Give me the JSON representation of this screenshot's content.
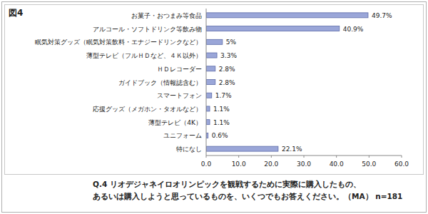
{
  "chart_data": {
    "type": "bar",
    "orientation": "horizontal",
    "title": "図4",
    "annotations": [
      "Q.4 リオデジャネイロオリンピックを観戦するために実際に購入したもの、",
      "あるいは購入しようと思っているものを、いくつでもお答えください。（MA） n=181"
    ],
    "categories": [
      "お菓子・おつまみ等食品",
      "アルコール・ソフトドリンク等飲み物",
      "眠気対策グッズ（眠気対策飲料・エナジードリンクなど）",
      "薄型テレビ（フルＨＤなど、４Ｋ以外）",
      "ＨＤレコーダー",
      "ガイドブック（情報誌含む）",
      "スマートフォン",
      "応援グッズ（メガホン・タオルなど）",
      "薄型テレビ（4K）",
      "ユニフォーム",
      "特になし"
    ],
    "values": [
      49.7,
      40.9,
      5,
      3.3,
      2.8,
      2.8,
      1.7,
      1.1,
      1.1,
      0.6,
      22.1
    ],
    "value_labels": [
      "49.7%",
      "40.9%",
      "5%",
      "3.3%",
      "2.8%",
      "2.8%",
      "1.7%",
      "1.1%",
      "1.1%",
      "0.6%",
      "22.1%"
    ],
    "color": "#9aa6d8",
    "xlim": [
      0,
      60
    ],
    "xticks": [
      {
        "value": 0,
        "label": "0.0"
      },
      {
        "value": 10,
        "label": "10.0"
      },
      {
        "value": 20,
        "label": "20.0"
      },
      {
        "value": 30,
        "label": "30.0"
      },
      {
        "value": 40,
        "label": "40.0"
      },
      {
        "value": 50,
        "label": "50.0"
      },
      {
        "value": 60,
        "label": "60.0"
      }
    ],
    "grid": false,
    "data_labels": true
  }
}
